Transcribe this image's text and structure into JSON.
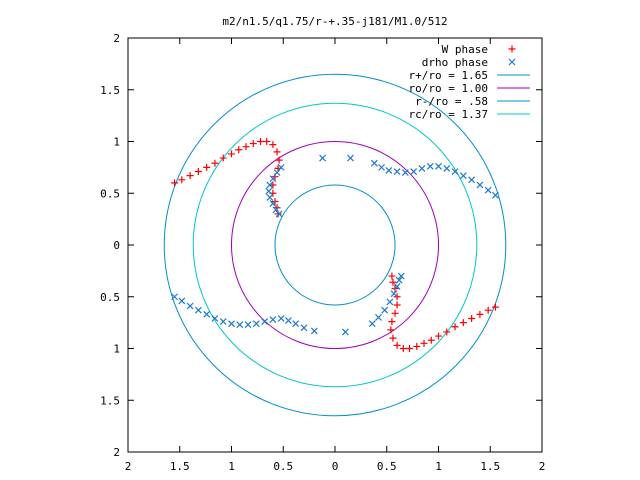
{
  "chart_data": {
    "type": "scatter",
    "title": "m2/n1.5/q1.75/r-+.35-j181/M1.0/512",
    "xlim": [
      -2,
      2
    ],
    "ylim": [
      -2,
      2
    ],
    "x_ticks": [
      "2",
      "1.5",
      "1",
      "0.5",
      "0",
      "0.5",
      "1",
      "1.5",
      "2"
    ],
    "y_ticks": [
      "2",
      "1.5",
      "1",
      "0.5",
      "0",
      "0.5",
      "1",
      "1.5",
      "2"
    ],
    "grid": false,
    "legend_position": "top-right",
    "circles": [
      {
        "name": "r+/ro = 1.65",
        "radius": 1.65,
        "color": "#0090c8"
      },
      {
        "name": "ro/ro = 1.00",
        "radius": 1.0,
        "color": "#a000b4"
      },
      {
        "name": "r-/ro = .58",
        "radius": 0.58,
        "color": "#0090c8"
      },
      {
        "name": "rc/ro = 1.37",
        "radius": 1.37,
        "color": "#00c8c8"
      }
    ],
    "series": [
      {
        "name": "W phase",
        "marker": "+",
        "color": "#ff0000",
        "points": [
          [
            -1.55,
            0.6
          ],
          [
            -1.48,
            0.63
          ],
          [
            -1.4,
            0.67
          ],
          [
            -1.32,
            0.71
          ],
          [
            -1.24,
            0.75
          ],
          [
            -1.16,
            0.79
          ],
          [
            -1.08,
            0.84
          ],
          [
            -1.0,
            0.88
          ],
          [
            -0.93,
            0.92
          ],
          [
            -0.86,
            0.95
          ],
          [
            -0.79,
            0.98
          ],
          [
            -0.72,
            1.0
          ],
          [
            -0.66,
            1.0
          ],
          [
            -0.6,
            0.97
          ],
          [
            -0.56,
            0.9
          ],
          [
            -0.54,
            0.82
          ],
          [
            -0.55,
            0.74
          ],
          [
            -0.58,
            0.66
          ],
          [
            -0.6,
            0.58
          ],
          [
            -0.6,
            0.5
          ],
          [
            -0.58,
            0.42
          ],
          [
            -0.56,
            0.36
          ],
          [
            -0.55,
            0.3
          ],
          [
            1.55,
            -0.6
          ],
          [
            1.48,
            -0.63
          ],
          [
            1.4,
            -0.67
          ],
          [
            1.32,
            -0.71
          ],
          [
            1.24,
            -0.75
          ],
          [
            1.16,
            -0.79
          ],
          [
            1.08,
            -0.84
          ],
          [
            1.0,
            -0.88
          ],
          [
            0.93,
            -0.92
          ],
          [
            0.86,
            -0.95
          ],
          [
            0.79,
            -0.98
          ],
          [
            0.72,
            -1.0
          ],
          [
            0.66,
            -1.0
          ],
          [
            0.6,
            -0.97
          ],
          [
            0.56,
            -0.9
          ],
          [
            0.54,
            -0.82
          ],
          [
            0.55,
            -0.74
          ],
          [
            0.58,
            -0.66
          ],
          [
            0.6,
            -0.58
          ],
          [
            0.6,
            -0.5
          ],
          [
            0.58,
            -0.42
          ],
          [
            0.56,
            -0.36
          ],
          [
            0.55,
            -0.3
          ]
        ]
      },
      {
        "name": "drho phase",
        "marker": "x",
        "color": "#1e78d2",
        "points": [
          [
            -1.55,
            -0.5
          ],
          [
            -1.48,
            -0.54
          ],
          [
            -1.4,
            -0.59
          ],
          [
            -1.32,
            -0.63
          ],
          [
            -1.24,
            -0.67
          ],
          [
            -1.16,
            -0.71
          ],
          [
            -1.08,
            -0.74
          ],
          [
            -1.0,
            -0.76
          ],
          [
            -0.92,
            -0.77
          ],
          [
            -0.84,
            -0.77
          ],
          [
            -0.76,
            -0.76
          ],
          [
            -0.68,
            -0.74
          ],
          [
            -0.6,
            -0.72
          ],
          [
            -0.52,
            -0.71
          ],
          [
            -0.45,
            -0.73
          ],
          [
            -0.38,
            -0.76
          ],
          [
            -0.3,
            -0.8
          ],
          [
            -0.2,
            -0.83
          ],
          [
            0.1,
            -0.84
          ],
          [
            0.36,
            -0.76
          ],
          [
            0.42,
            -0.7
          ],
          [
            0.48,
            -0.63
          ],
          [
            0.53,
            -0.55
          ],
          [
            0.57,
            -0.47
          ],
          [
            0.6,
            -0.4
          ],
          [
            0.62,
            -0.34
          ],
          [
            0.64,
            -0.3
          ],
          [
            1.55,
            0.48
          ],
          [
            1.48,
            0.53
          ],
          [
            1.4,
            0.58
          ],
          [
            1.32,
            0.63
          ],
          [
            1.24,
            0.67
          ],
          [
            1.16,
            0.71
          ],
          [
            1.08,
            0.74
          ],
          [
            1.0,
            0.76
          ],
          [
            0.92,
            0.76
          ],
          [
            0.84,
            0.74
          ],
          [
            0.76,
            0.71
          ],
          [
            0.68,
            0.7
          ],
          [
            0.6,
            0.71
          ],
          [
            0.52,
            0.72
          ],
          [
            0.45,
            0.75
          ],
          [
            0.38,
            0.79
          ],
          [
            0.15,
            0.84
          ],
          [
            -0.12,
            0.84
          ],
          [
            -0.52,
            0.75
          ],
          [
            -0.56,
            0.7
          ],
          [
            -0.6,
            0.64
          ],
          [
            -0.63,
            0.58
          ],
          [
            -0.64,
            0.52
          ],
          [
            -0.63,
            0.46
          ],
          [
            -0.6,
            0.4
          ],
          [
            -0.57,
            0.34
          ],
          [
            -0.54,
            0.3
          ]
        ]
      }
    ]
  }
}
